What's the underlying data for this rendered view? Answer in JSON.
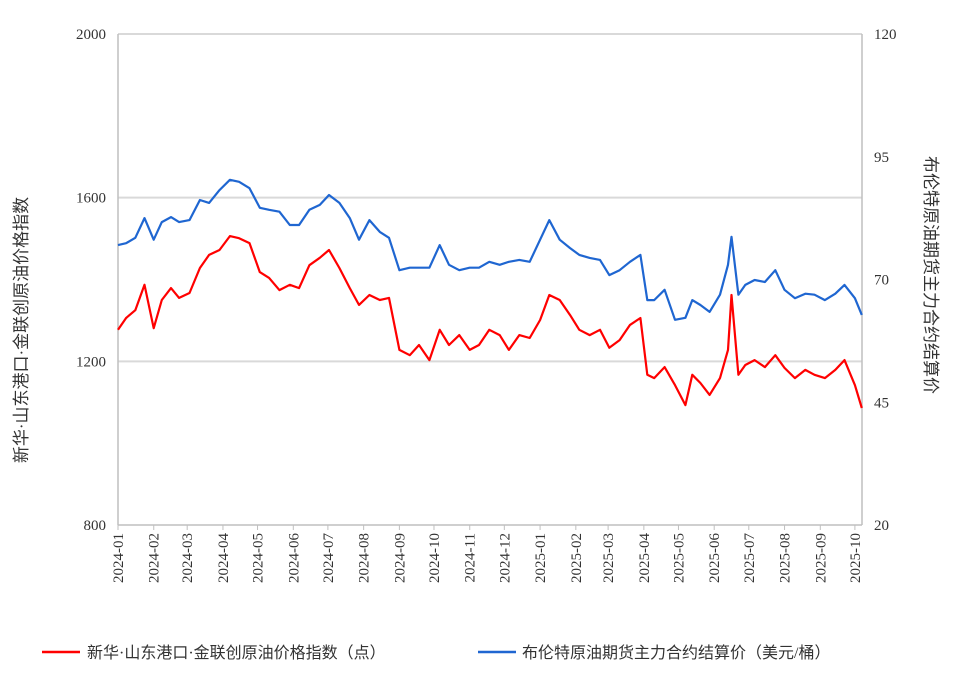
{
  "chart_data": {
    "type": "line",
    "title": "",
    "xlabel": "",
    "ylabel": "新华·山东港口·金联创原油价格指数",
    "ylabel_right": "布伦特原油期货主力合约结算价",
    "ylim": [
      800,
      2000
    ],
    "ylim_right": [
      20,
      120
    ],
    "yticks": [
      "800",
      "1200",
      "1600",
      "2000"
    ],
    "yticks_right": [
      "20",
      "45",
      "70",
      "95",
      "120"
    ],
    "xticks": [
      "2024-01",
      "2024-02",
      "2024-03",
      "2024-04",
      "2024-05",
      "2024-06",
      "2024-07",
      "2024-08",
      "2024-09",
      "2024-10",
      "2024-11",
      "2024-12",
      "2025-01",
      "2025-02",
      "2025-03",
      "2025-04",
      "2025-05",
      "2025-06",
      "2025-07",
      "2025-08",
      "2025-09",
      "2025-10"
    ],
    "grid": "horizontal",
    "legend_position": "bottom",
    "x": [
      "2024-01-01",
      "2024-01-08",
      "2024-01-16",
      "2024-01-24",
      "2024-02-01",
      "2024-02-08",
      "2024-02-16",
      "2024-02-23",
      "2024-03-03",
      "2024-03-12",
      "2024-03-20",
      "2024-03-29",
      "2024-04-07",
      "2024-04-15",
      "2024-04-24",
      "2024-05-03",
      "2024-05-11",
      "2024-05-20",
      "2024-05-29",
      "2024-06-06",
      "2024-06-15",
      "2024-06-24",
      "2024-07-02",
      "2024-07-11",
      "2024-07-20",
      "2024-07-28",
      "2024-08-06",
      "2024-08-15",
      "2024-08-23",
      "2024-09-01",
      "2024-09-10",
      "2024-09-18",
      "2024-09-27",
      "2024-10-06",
      "2024-10-14",
      "2024-10-23",
      "2024-11-01",
      "2024-11-09",
      "2024-11-18",
      "2024-11-27",
      "2024-12-05",
      "2024-12-14",
      "2024-12-23",
      "2025-01-01",
      "2025-01-09",
      "2025-01-18",
      "2025-01-27",
      "2025-02-04",
      "2025-02-13",
      "2025-02-22",
      "2025-03-02",
      "2025-03-11",
      "2025-03-20",
      "2025-03-29",
      "2025-04-04",
      "2025-04-10",
      "2025-04-19",
      "2025-04-28",
      "2025-05-07",
      "2025-05-13",
      "2025-05-20",
      "2025-05-28",
      "2025-06-06",
      "2025-06-13",
      "2025-06-16",
      "2025-06-22",
      "2025-06-28",
      "2025-07-06",
      "2025-07-15",
      "2025-07-24",
      "2025-08-01",
      "2025-08-10",
      "2025-08-19",
      "2025-08-27",
      "2025-09-05",
      "2025-09-14",
      "2025-09-22",
      "2025-10-01",
      "2025-10-07"
    ],
    "series": [
      {
        "name": "新华·山东港口·金联创原油价格指数（点）",
        "axis": "left",
        "color": "#ff0000",
        "values": [
          1277,
          1306,
          1325,
          1387,
          1281,
          1350,
          1379,
          1355,
          1367,
          1428,
          1460,
          1472,
          1506,
          1501,
          1489,
          1418,
          1404,
          1374,
          1387,
          1379,
          1435,
          1453,
          1472,
          1428,
          1379,
          1338,
          1362,
          1350,
          1355,
          1228,
          1215,
          1240,
          1203,
          1277,
          1240,
          1264,
          1228,
          1240,
          1277,
          1264,
          1228,
          1264,
          1257,
          1301,
          1362,
          1350,
          1313,
          1277,
          1264,
          1277,
          1233,
          1252,
          1289,
          1306,
          1167,
          1159,
          1186,
          1142,
          1093,
          1167,
          1147,
          1118,
          1159,
          1228,
          1362,
          1167,
          1191,
          1203,
          1186,
          1215,
          1184,
          1159,
          1179,
          1167,
          1159,
          1179,
          1203,
          1142,
          1086
        ]
      },
      {
        "name": "布伦特原油期货主力合约结算价（美元/桶）",
        "axis": "right",
        "color": "#1f66d1",
        "values": [
          77.0,
          77.4,
          78.5,
          82.5,
          78.1,
          81.7,
          82.7,
          81.7,
          82.1,
          86.2,
          85.6,
          88.2,
          90.3,
          89.9,
          88.6,
          84.6,
          84.2,
          83.8,
          81.1,
          81.1,
          84.2,
          85.2,
          87.2,
          85.6,
          82.5,
          78.1,
          82.1,
          79.7,
          78.5,
          71.9,
          72.4,
          72.4,
          72.4,
          77.0,
          73.0,
          71.9,
          72.4,
          72.4,
          73.6,
          73.0,
          73.6,
          74.0,
          73.6,
          78.1,
          82.1,
          78.1,
          76.4,
          75.0,
          74.4,
          74.0,
          70.9,
          71.9,
          73.6,
          75.0,
          65.8,
          65.8,
          67.9,
          61.8,
          62.2,
          65.8,
          64.8,
          63.4,
          66.9,
          73.0,
          78.7,
          66.9,
          68.9,
          69.9,
          69.5,
          71.9,
          67.9,
          66.2,
          67.1,
          66.9,
          65.8,
          67.1,
          68.9,
          66.2,
          62.8
        ]
      }
    ]
  }
}
